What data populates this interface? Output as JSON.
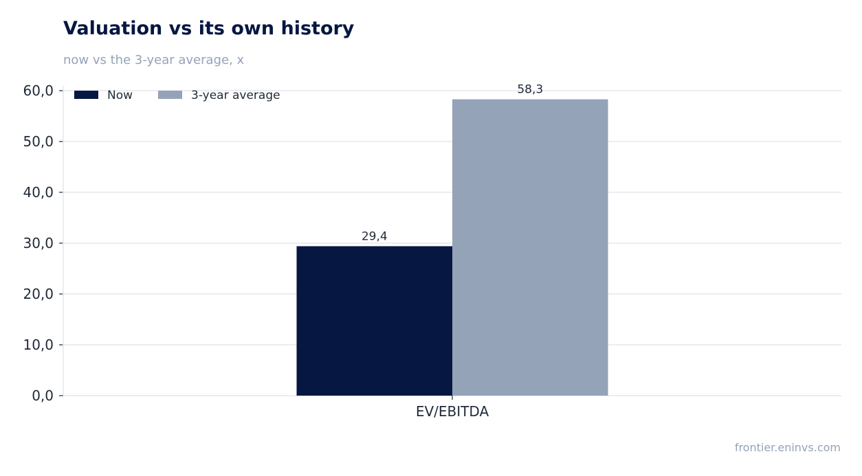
{
  "title": "Valuation vs its own history",
  "subtitle": "now vs the 3-year average, x",
  "footer": "frontier.eninvs.com",
  "colors": {
    "now": "#061741",
    "avg": "#94a3b8",
    "grid": "#e5e7eb"
  },
  "chart_data": {
    "type": "bar",
    "categories": [
      "EV/EBITDA"
    ],
    "series": [
      {
        "name": "Now",
        "values": [
          29.4
        ],
        "labels": [
          "29,4"
        ],
        "color": "#061741"
      },
      {
        "name": "3-year average",
        "values": [
          58.3
        ],
        "labels": [
          "58,3"
        ],
        "color": "#94a3b8"
      }
    ],
    "ylim": [
      0,
      60
    ],
    "yticks": [
      0,
      10,
      20,
      30,
      40,
      50,
      60
    ],
    "ytick_labels": [
      "0,0",
      "10,0",
      "20,0",
      "30,0",
      "40,0",
      "50,0",
      "60,0"
    ],
    "grid": true,
    "legend": "top-left"
  }
}
